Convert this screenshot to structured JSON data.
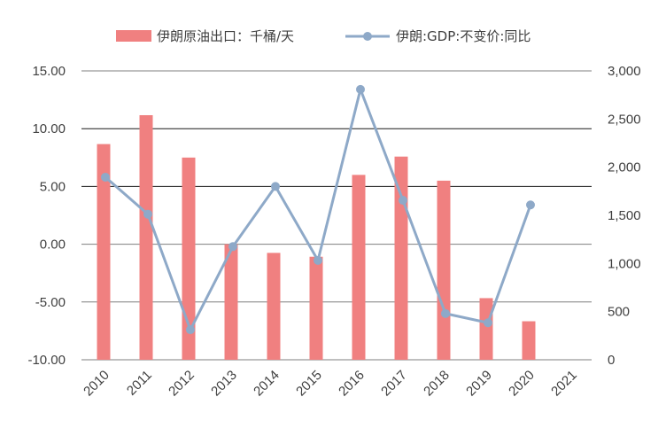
{
  "chart_data": {
    "type": "bar+line",
    "categories": [
      "2010",
      "2011",
      "2012",
      "2013",
      "2014",
      "2015",
      "2016",
      "2017",
      "2018",
      "2019",
      "2020",
      "2021"
    ],
    "series": [
      {
        "name": "伊朗原油出口：千桶/天",
        "type": "bar",
        "axis": "right",
        "color": "#f08080",
        "values": [
          2240,
          2540,
          2100,
          1200,
          1110,
          1070,
          1920,
          2110,
          1860,
          640,
          400,
          null
        ]
      },
      {
        "name": "伊朗:GDP:不变价:同比",
        "type": "line",
        "axis": "left",
        "color": "#8ea9c8",
        "values": [
          5.8,
          2.6,
          -7.4,
          -0.2,
          5.0,
          -1.4,
          13.4,
          3.8,
          -6.0,
          -6.8,
          3.4,
          null
        ]
      }
    ],
    "y_left": {
      "lim": [
        -10,
        15
      ],
      "ticks": [
        -10,
        -5,
        0,
        5,
        10,
        15
      ],
      "tick_labels": [
        "-10.00",
        "-5.00",
        "0.00",
        "5.00",
        "10.00",
        "15.00"
      ]
    },
    "y_right": {
      "lim": [
        0,
        3000
      ],
      "ticks": [
        0,
        500,
        1000,
        1500,
        2000,
        2500,
        3000
      ],
      "tick_labels": [
        "0",
        "500",
        "1,000",
        "1,500",
        "2,000",
        "2,500",
        "3,000"
      ]
    },
    "grid": true,
    "legend": "top-center"
  }
}
